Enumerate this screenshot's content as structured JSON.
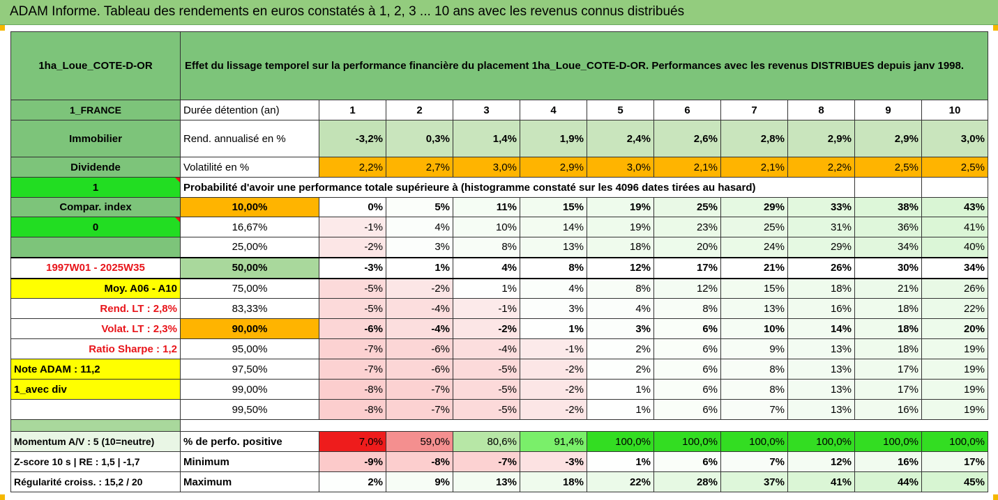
{
  "title": "ADAM Informe. Tableau des rendements en euros constatés à 1, 2, 3 ... 10 ans avec les revenus connus distribués",
  "header": {
    "name": "1ha_Loue_COTE-D-OR",
    "description": "Effet du lissage temporel sur la performance financière du placement 1ha_Loue_COTE-D-OR. Performances avec les revenus DISTRIBUES depuis janv 1998."
  },
  "years": [
    "1",
    "2",
    "3",
    "4",
    "5",
    "6",
    "7",
    "8",
    "9",
    "10"
  ],
  "sidebar": {
    "country": "1_FRANCE",
    "category": "Immobilier",
    "dividend": "Dividende",
    "flag1": "1",
    "compar": "Compar. index",
    "flag0": "0",
    "period": "1997W01 - 2025W35",
    "moy": "Moy. A06 - A10",
    "rend_lt": "Rend. LT :   2,8%",
    "volat_lt": "Volat. LT :   2,3%",
    "sharpe": "Ratio Sharpe :   1,2",
    "note": "Note ADAM : 11,2",
    "avec_div": "1_avec div"
  },
  "rows": {
    "duree_label": "Durée détention (an)",
    "rend_label": "Rend. annualisé en %",
    "rend": [
      "-3,2%",
      "0,3%",
      "1,4%",
      "1,9%",
      "2,4%",
      "2,6%",
      "2,8%",
      "2,9%",
      "2,9%",
      "3,0%"
    ],
    "vol_label": "Volatilité en %",
    "vol": [
      "2,2%",
      "2,7%",
      "3,0%",
      "2,9%",
      "3,0%",
      "2,1%",
      "2,1%",
      "2,2%",
      "2,5%",
      "2,5%"
    ],
    "proba_label": "Probabilité d'avoir une performance totale supérieure à (histogramme constaté sur les 4096 dates tirées au hasard)"
  },
  "percentiles": [
    {
      "p": "10,00%",
      "v": [
        "0%",
        "5%",
        "11%",
        "15%",
        "19%",
        "25%",
        "29%",
        "33%",
        "38%",
        "43%"
      ]
    },
    {
      "p": "16,67%",
      "v": [
        "-1%",
        "4%",
        "10%",
        "14%",
        "19%",
        "23%",
        "25%",
        "31%",
        "36%",
        "41%"
      ]
    },
    {
      "p": "25,00%",
      "v": [
        "-2%",
        "3%",
        "8%",
        "13%",
        "18%",
        "20%",
        "24%",
        "29%",
        "34%",
        "40%"
      ]
    },
    {
      "p": "50,00%",
      "v": [
        "-3%",
        "1%",
        "4%",
        "8%",
        "12%",
        "17%",
        "21%",
        "26%",
        "30%",
        "34%"
      ]
    },
    {
      "p": "75,00%",
      "v": [
        "-5%",
        "-2%",
        "1%",
        "4%",
        "8%",
        "12%",
        "15%",
        "18%",
        "21%",
        "26%"
      ]
    },
    {
      "p": "83,33%",
      "v": [
        "-5%",
        "-4%",
        "-1%",
        "3%",
        "4%",
        "8%",
        "13%",
        "16%",
        "18%",
        "22%"
      ]
    },
    {
      "p": "90,00%",
      "v": [
        "-6%",
        "-4%",
        "-2%",
        "1%",
        "3%",
        "6%",
        "10%",
        "14%",
        "18%",
        "20%"
      ]
    },
    {
      "p": "95,00%",
      "v": [
        "-7%",
        "-6%",
        "-4%",
        "-1%",
        "2%",
        "6%",
        "9%",
        "13%",
        "18%",
        "19%"
      ]
    },
    {
      "p": "97,50%",
      "v": [
        "-7%",
        "-6%",
        "-5%",
        "-2%",
        "2%",
        "6%",
        "8%",
        "13%",
        "17%",
        "19%"
      ]
    },
    {
      "p": "99,00%",
      "v": [
        "-8%",
        "-7%",
        "-5%",
        "-2%",
        "1%",
        "6%",
        "8%",
        "13%",
        "17%",
        "19%"
      ]
    },
    {
      "p": "99,50%",
      "v": [
        "-8%",
        "-7%",
        "-5%",
        "-2%",
        "1%",
        "6%",
        "7%",
        "13%",
        "16%",
        "19%"
      ]
    }
  ],
  "bottom": {
    "momentum": "Momentum A/V : 5 (10=neutre)",
    "zscore": "Z-score 10 s  |  RE : 1,5  |  -1,7",
    "regularite": "Régularité croiss. : 15,2 / 20",
    "pos_label": "% de perfo. positive",
    "pos": [
      "7,0%",
      "59,0%",
      "80,6%",
      "91,4%",
      "100,0%",
      "100,0%",
      "100,0%",
      "100,0%",
      "100,0%",
      "100,0%"
    ],
    "min_label": "Minimum",
    "min": [
      "-9%",
      "-8%",
      "-7%",
      "-3%",
      "1%",
      "6%",
      "7%",
      "12%",
      "16%",
      "17%"
    ],
    "max_label": "Maximum",
    "max": [
      "2%",
      "9%",
      "13%",
      "18%",
      "22%",
      "28%",
      "37%",
      "41%",
      "44%",
      "45%"
    ]
  },
  "colors": {
    "header_green": "#7dc47a",
    "bright_green": "#22dd22",
    "orange": "#ffb400",
    "yellow": "#ffff00",
    "red_text": "#e8141a"
  }
}
